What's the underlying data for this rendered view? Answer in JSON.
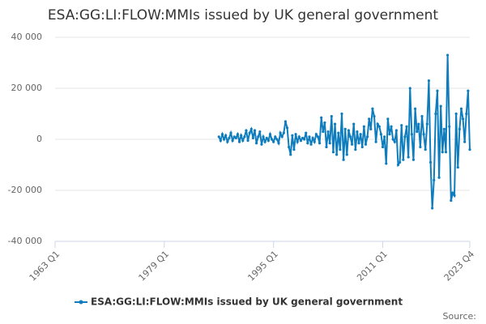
{
  "chart_data": {
    "type": "line",
    "title": "ESA:GG:LI:FLOW:MMIs issued by UK general government",
    "source": "Source:",
    "x": [
      1987,
      1987.25,
      1987.5,
      1987.75,
      1988,
      1988.25,
      1988.5,
      1988.75,
      1989,
      1989.25,
      1989.5,
      1989.75,
      1990,
      1990.25,
      1990.5,
      1990.75,
      1991,
      1991.25,
      1991.5,
      1991.75,
      1992,
      1992.25,
      1992.5,
      1992.75,
      1993,
      1993.25,
      1993.5,
      1993.75,
      1994,
      1994.25,
      1994.5,
      1994.75,
      1995,
      1995.25,
      1995.5,
      1995.75,
      1996,
      1996.25,
      1996.5,
      1996.75,
      1997,
      1997.25,
      1997.5,
      1997.75,
      1998,
      1998.25,
      1998.5,
      1998.75,
      1999,
      1999.25,
      1999.5,
      1999.75,
      2000,
      2000.25,
      2000.5,
      2000.75,
      2001,
      2001.25,
      2001.5,
      2001.75,
      2002,
      2002.25,
      2002.5,
      2002.75,
      2003,
      2003.25,
      2003.5,
      2003.75,
      2004,
      2004.25,
      2004.5,
      2004.75,
      2005,
      2005.25,
      2005.5,
      2005.75,
      2006,
      2006.25,
      2006.5,
      2006.75,
      2007,
      2007.25,
      2007.5,
      2007.75,
      2008,
      2008.25,
      2008.5,
      2008.75,
      2009,
      2009.25,
      2009.5,
      2009.75,
      2010,
      2010.25,
      2010.5,
      2010.75,
      2011,
      2011.25,
      2011.5,
      2011.75,
      2012,
      2012.25,
      2012.5,
      2012.75,
      2013,
      2013.25,
      2013.5,
      2013.75,
      2014,
      2014.25,
      2014.5,
      2014.75,
      2015,
      2015.25,
      2015.5,
      2015.75,
      2016,
      2016.25,
      2016.5,
      2016.75,
      2017,
      2017.25,
      2017.5,
      2017.75,
      2018,
      2018.25,
      2018.5,
      2018.75,
      2019,
      2019.25,
      2019.5,
      2019.75,
      2020,
      2020.25,
      2020.5,
      2020.75,
      2021,
      2021.25,
      2021.5,
      2021.75,
      2022,
      2022.25,
      2022.5,
      2022.75,
      2023,
      2023.25,
      2023.5,
      2023.75
    ],
    "series": [
      {
        "name": "ESA:GG:LI:FLOW:MMIs issued by UK general government",
        "color": "#0f7dbd",
        "values": [
          1000,
          -500,
          2000,
          0,
          1500,
          -1000,
          500,
          2500,
          -500,
          1000,
          500,
          2000,
          -1000,
          1500,
          -500,
          1000,
          3500,
          -500,
          2500,
          4000,
          500,
          3500,
          -1500,
          1000,
          3000,
          -2000,
          1000,
          -1000,
          500,
          -500,
          2000,
          0,
          -1000,
          1000,
          0,
          -1500,
          2500,
          1000,
          2500,
          7000,
          4500,
          -3000,
          -6000,
          1500,
          -4000,
          2000,
          -1000,
          1000,
          -500,
          500,
          0,
          2500,
          -1500,
          1000,
          -2000,
          500,
          -1000,
          2000,
          1000,
          -1500,
          8500,
          3000,
          6500,
          -3000,
          3000,
          -1500,
          9000,
          -5000,
          6000,
          -6000,
          2500,
          -4000,
          10000,
          -8000,
          4000,
          -6000,
          3500,
          1000,
          -2000,
          6000,
          -4000,
          3000,
          -1500,
          2000,
          -3000,
          5000,
          -2000,
          1000,
          8000,
          4000,
          12000,
          9000,
          -1000,
          6000,
          5000,
          2000,
          -3000,
          1000,
          -9500,
          8000,
          2000,
          5000,
          0,
          -1000,
          3500,
          -10000,
          -9000,
          5500,
          -8000,
          1000,
          5000,
          -7000,
          20000,
          2000,
          -8000,
          12000,
          3000,
          6000,
          -3000,
          9000,
          2000,
          -4000,
          6000,
          23000,
          -9000,
          -27000,
          -16000,
          10000,
          19000,
          -15000,
          13000,
          -5000,
          4000,
          -5000,
          33000,
          5000,
          -24000,
          -21000,
          -22000,
          10000,
          -11000,
          4000,
          12000,
          8000,
          -1000,
          10000,
          19000,
          -4000
        ]
      }
    ],
    "xlim": [
      1963,
      2023.75
    ],
    "xticks": [
      {
        "value": 1963,
        "label": "1963 Q1"
      },
      {
        "value": 1979,
        "label": "1979 Q1"
      },
      {
        "value": 1995,
        "label": "1995 Q1"
      },
      {
        "value": 2011,
        "label": "2011 Q1"
      },
      {
        "value": 2023.75,
        "label": "2023 Q4"
      }
    ],
    "ylim": [
      -40000,
      40000
    ],
    "yticks": [
      {
        "value": -40000,
        "label": "-40 000"
      },
      {
        "value": -20000,
        "label": "-20 000"
      },
      0,
      {
        "value": 20000,
        "label": "20 000"
      },
      {
        "value": 40000,
        "label": "40 000"
      }
    ],
    "grid": true
  }
}
